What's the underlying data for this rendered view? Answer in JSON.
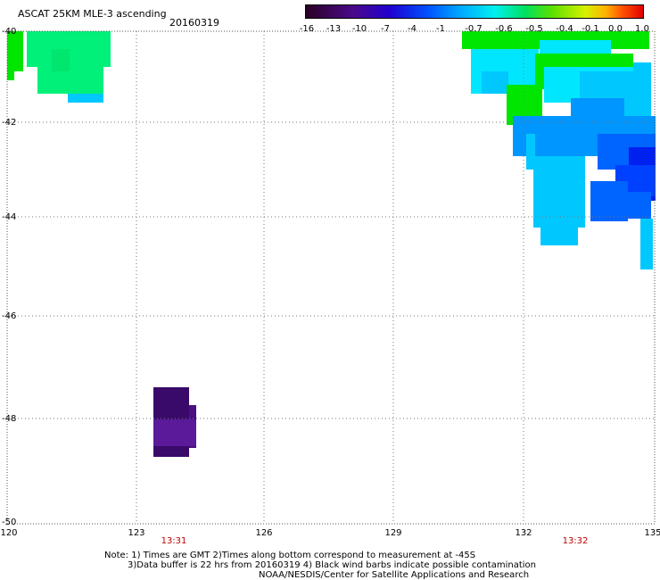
{
  "header": {
    "title": "ASCAT 25KM MLE-3 ascending",
    "date": "20160319"
  },
  "colorbar": {
    "labels": [
      "-16",
      "-13",
      "-10",
      "-7",
      "-4",
      "-1",
      "-0.7",
      "-0.6",
      "-0.5",
      "-0.4",
      "-0.1",
      "0.0",
      "1.0"
    ]
  },
  "map": {
    "y_labels": [
      "-40",
      "-42",
      "-44",
      "-46",
      "-48",
      "-50"
    ],
    "x_labels": [
      "120",
      "123",
      "126",
      "129",
      "132",
      "135"
    ],
    "times": [
      "13:31",
      "13:32"
    ]
  },
  "footer": {
    "line1": "Note: 1) Times are GMT 2)Times along bottom correspond to measurement at -45S",
    "line2": "3)Data buffer is 22 hrs from 20160319 4) Black wind barbs indicate possible contamination",
    "line3": "NOAA/NESDIS/Center for Satellite Applications and Research"
  },
  "palette": {
    "green": "#00e600",
    "light_green": "#00f07a",
    "cyan": "#00e6ff",
    "light_blue": "#00c8ff",
    "mid_blue": "#0096ff",
    "blue": "#0064ff",
    "deep_blue": "#0020f0",
    "dark_purple": "#3a0a6a",
    "purple": "#5a1a9a"
  }
}
